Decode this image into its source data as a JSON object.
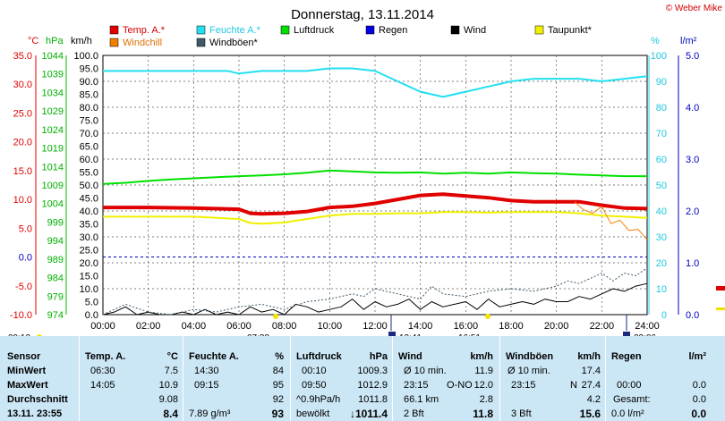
{
  "title": "Donnerstag, 13.11.2014",
  "credit": "© Weber Mike",
  "legend": [
    {
      "name": "Temp. A.*",
      "color": "#e00000"
    },
    {
      "name": "Feuchte A.*",
      "color": "#22e0f0"
    },
    {
      "name": "Luftdruck",
      "color": "#00e000"
    },
    {
      "name": "Regen",
      "color": "#0000e0"
    },
    {
      "name": "Wind",
      "color": "#000000"
    },
    {
      "name": "Taupunkt*",
      "color": "#f0f000"
    },
    {
      "name": "Windchill",
      "color": "#f08000"
    },
    {
      "name": "Windböen*",
      "color": "#405868"
    }
  ],
  "axis_units": {
    "temp": "°C",
    "pressure": "hPa",
    "wind": "km/h",
    "humidity": "%",
    "rain": "l/m²"
  },
  "markers": {
    "sunrise": "07:38",
    "sunset": "16:51",
    "moonrise": "12:41",
    "moonset": "23:06",
    "day_start": "09:13"
  },
  "chart_data": {
    "type": "line",
    "x_ticks": [
      "00:00",
      "02:00",
      "04:00",
      "06:00",
      "08:00",
      "10:00",
      "12:00",
      "14:00",
      "16:00",
      "18:00",
      "20:00",
      "22:00",
      "24:00"
    ],
    "axes": {
      "wind": {
        "range": [
          0,
          100
        ],
        "ticks": [
          "0.0",
          "5.0",
          "10.0",
          "15.0",
          "20.0",
          "25.0",
          "30.0",
          "35.0",
          "40.0",
          "45.0",
          "50.0",
          "55.0",
          "60.0",
          "65.0",
          "70.0",
          "75.0",
          "80.0",
          "85.0",
          "90.0",
          "95.0",
          "100.0"
        ]
      },
      "temp": {
        "range": [
          -10,
          35
        ],
        "ticks": [
          "-10.0",
          "-5.0",
          "0.0",
          "5.0",
          "10.0",
          "15.0",
          "20.0",
          "25.0",
          "30.0",
          "35.0"
        ]
      },
      "pressure": {
        "range": [
          974,
          1044
        ],
        "ticks": [
          "974",
          "979",
          "984",
          "989",
          "994",
          "999",
          "1004",
          "1009",
          "1014",
          "1019",
          "1024",
          "1029",
          "1034",
          "1039",
          "1044"
        ]
      },
      "humidity": {
        "range": [
          0,
          100
        ],
        "ticks": [
          "0",
          "10",
          "20",
          "30",
          "40",
          "50",
          "60",
          "70",
          "80",
          "90",
          "100"
        ]
      },
      "rain": {
        "range": [
          0,
          5
        ],
        "ticks": [
          "0.0",
          "1.0",
          "2.0",
          "3.0",
          "4.0",
          "5.0"
        ]
      }
    },
    "series": [
      {
        "name": "Temp. A.*",
        "axis": "temp",
        "color": "#e00000",
        "x": [
          0,
          2,
          4,
          6,
          6.5,
          7,
          8,
          9,
          10,
          11,
          12,
          13,
          14,
          15,
          16,
          17,
          18,
          19,
          20,
          21,
          22,
          23,
          24
        ],
        "y": [
          8.6,
          8.6,
          8.5,
          8.3,
          7.6,
          7.5,
          7.6,
          7.9,
          8.6,
          8.8,
          9.3,
          10.0,
          10.7,
          10.9,
          10.6,
          10.3,
          9.8,
          9.6,
          9.6,
          9.6,
          9.0,
          8.5,
          8.4
        ]
      },
      {
        "name": "Feuchte A.*",
        "axis": "humidity",
        "color": "#22e0f0",
        "x": [
          0,
          2,
          4,
          5.5,
          6,
          7,
          8,
          9,
          10,
          11,
          12,
          13,
          13.5,
          14,
          14.5,
          15,
          16,
          17,
          18,
          19,
          20,
          21,
          22,
          23,
          24
        ],
        "y": [
          94,
          94,
          94,
          94,
          93,
          94,
          94,
          94,
          95,
          95,
          94,
          90,
          88,
          86,
          85,
          84,
          86,
          88,
          90,
          91,
          91,
          91,
          90,
          91,
          92
        ]
      },
      {
        "name": "Luftdruck",
        "axis": "pressure",
        "color": "#00e000",
        "x": [
          0,
          1,
          2,
          3,
          4,
          5,
          6,
          7,
          8,
          9,
          10,
          11,
          12,
          13,
          14,
          15,
          16,
          17,
          18,
          19,
          20,
          21,
          22,
          23,
          24
        ],
        "y": [
          1009.3,
          1009.6,
          1010.1,
          1010.5,
          1010.8,
          1011.1,
          1011.4,
          1011.6,
          1011.9,
          1012.3,
          1012.9,
          1012.7,
          1012.4,
          1012.3,
          1012.4,
          1012.1,
          1012.3,
          1012.1,
          1012.4,
          1012.2,
          1012.1,
          1011.8,
          1011.6,
          1011.4,
          1011.4
        ]
      },
      {
        "name": "Taupunkt*",
        "axis": "temp",
        "color": "#f0f000",
        "x": [
          0,
          2,
          4,
          6,
          6.5,
          7,
          8,
          9,
          10,
          11,
          12,
          13,
          14,
          15,
          16,
          17,
          18,
          19,
          20,
          21,
          22,
          23,
          24
        ],
        "y": [
          7.0,
          7.0,
          7.0,
          6.6,
          5.9,
          5.8,
          6.0,
          6.6,
          7.2,
          7.5,
          7.5,
          7.6,
          7.6,
          7.8,
          7.8,
          7.7,
          7.8,
          7.8,
          7.8,
          7.6,
          7.2,
          7.0,
          6.8
        ]
      },
      {
        "name": "Windchill",
        "axis": "temp",
        "color": "#f08000",
        "x": [
          20.8,
          21.2,
          21.6,
          22,
          22.4,
          22.8,
          23.2,
          23.6,
          24
        ],
        "y": [
          9.6,
          8.2,
          7.6,
          8.8,
          5.8,
          6.4,
          4.6,
          4.8,
          3.0
        ]
      },
      {
        "name": "Wind",
        "axis": "wind",
        "color": "#000000",
        "x": [
          0,
          0.5,
          1,
          1.5,
          2,
          2.5,
          3,
          3.5,
          4,
          4.5,
          5,
          5.5,
          6,
          6.5,
          7,
          7.5,
          8,
          8.5,
          9,
          9.5,
          10,
          10.5,
          11,
          11.5,
          12,
          12.5,
          13,
          13.5,
          14,
          14.5,
          15,
          15.5,
          16,
          16.5,
          17,
          17.5,
          18,
          18.5,
          19,
          19.5,
          20,
          20.5,
          21,
          21.5,
          22,
          22.5,
          23,
          23.5,
          24
        ],
        "y": [
          0,
          1,
          3,
          0,
          1,
          0,
          0,
          1,
          0,
          2,
          0,
          1,
          0,
          3,
          1,
          2,
          0,
          4,
          3,
          1,
          2,
          3,
          6,
          2,
          5,
          3,
          4,
          6,
          2,
          5,
          3,
          4,
          5,
          2,
          6,
          3,
          4,
          5,
          4,
          6,
          5,
          5,
          7,
          6,
          8,
          10,
          9,
          11,
          12
        ]
      },
      {
        "name": "Windböen*",
        "axis": "wind",
        "color": "#405868",
        "dashed": true,
        "x": [
          0,
          1,
          2,
          3,
          4,
          5,
          6,
          7,
          8,
          9,
          10,
          11,
          11.5,
          12,
          13,
          14,
          14.5,
          15,
          16,
          17,
          18,
          19,
          20,
          20.5,
          21,
          21.5,
          22,
          22.5,
          23,
          23.5,
          24
        ],
        "y": [
          0,
          4,
          1,
          0,
          2,
          1,
          3,
          4,
          2,
          5,
          6,
          8,
          7,
          10,
          8,
          6,
          11,
          8,
          7,
          9,
          10,
          9,
          11,
          13,
          12,
          14,
          16,
          13,
          16,
          15,
          18
        ]
      }
    ]
  },
  "table": {
    "row_labels": [
      "Sensor",
      "MinWert",
      "MaxWert",
      "Durchschnitt",
      "13.11. 23:55"
    ],
    "temp": {
      "header": "Temp. A.",
      "unit": "°C",
      "min_time": "06:30",
      "min": "7.5",
      "max_time": "14:05",
      "max": "10.9",
      "avg": "9.08",
      "current": "8.4"
    },
    "humidity": {
      "header": "Feuchte A.",
      "unit": "%",
      "min_time": "14:30",
      "min": "84",
      "max_time": "09:15",
      "max": "95",
      "avg": "92",
      "abs": "7.89 g/m³",
      "current": "93"
    },
    "pressure": {
      "header": "Luftdruck",
      "unit": "hPa",
      "min_time": "00:10",
      "min": "1009.3",
      "max_time": "09:50",
      "max": "1012.9",
      "trend": "^0.9hPa/h",
      "avg": "1011.8",
      "forecast": "bewölkt",
      "current": "↓1011.4"
    },
    "wind": {
      "header": "Wind",
      "unit": "km/h",
      "avg_label": "Ø 10 min.",
      "avg": "11.9",
      "max_time": "23:15",
      "max_dir": "O-NO",
      "max": "12.0",
      "dist": "66.1 km",
      "dist_val": "2.8",
      "bft": "2 Bft",
      "current": "11.8"
    },
    "gusts": {
      "header": "Windböen",
      "unit": "km/h",
      "avg_label": "Ø 10 min.",
      "avg": "17.4",
      "max_time": "23:15",
      "max_dir": "N",
      "max": "27.4",
      "avg2": "4.2",
      "bft": "3 Bft",
      "current": "15.6"
    },
    "rain": {
      "header": "Regen",
      "unit": "l/m²",
      "time": "00:00",
      "val": "0.0",
      "total_label": "Gesamt:",
      "total": "0.0",
      "current_label": "0.0 l/m²",
      "current": "0.0"
    }
  }
}
